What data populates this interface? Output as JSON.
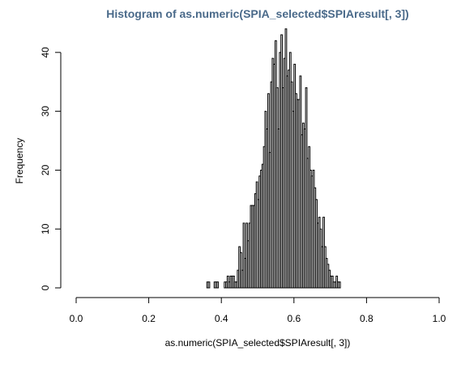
{
  "chart_data": {
    "type": "bar",
    "title": "Histogram of as.numeric(SPIA_selected$SPIAresult[, 3])",
    "xlabel": "as.numeric(SPIA_selected$SPIAresult[, 3])",
    "ylabel": "Frequency",
    "xlim": [
      0,
      1
    ],
    "ylim": [
      0,
      43
    ],
    "x_ticks": [
      0.0,
      0.2,
      0.4,
      0.6,
      0.8,
      1.0
    ],
    "x_tick_labels": [
      "0.0",
      "0.2",
      "0.4",
      "0.6",
      "0.8",
      "1.0"
    ],
    "y_ticks": [
      0,
      10,
      20,
      30,
      40
    ],
    "y_tick_labels": [
      "0",
      "10",
      "20",
      "30",
      "40"
    ],
    "bin_start": 0.36,
    "bin_width": 0.004,
    "counts": [
      1,
      1,
      0,
      0,
      0,
      1,
      1,
      1,
      0,
      0,
      0,
      0,
      1,
      1,
      2,
      1,
      2,
      2,
      2,
      1,
      1,
      3,
      7,
      6,
      3,
      11,
      5,
      11,
      8,
      11,
      14,
      14,
      14,
      16,
      18,
      15,
      19,
      20,
      21,
      24,
      30,
      27,
      33,
      23,
      35,
      39,
      38,
      42,
      34,
      27,
      40,
      43,
      34,
      39,
      44,
      36,
      37,
      40,
      35,
      30,
      38,
      33,
      32,
      32,
      36,
      26,
      28,
      27,
      34,
      22,
      24,
      20,
      19,
      20,
      17,
      15,
      11,
      12,
      10,
      7,
      12,
      7,
      5,
      4,
      3,
      2,
      2,
      1,
      1,
      2,
      1,
      1
    ]
  }
}
